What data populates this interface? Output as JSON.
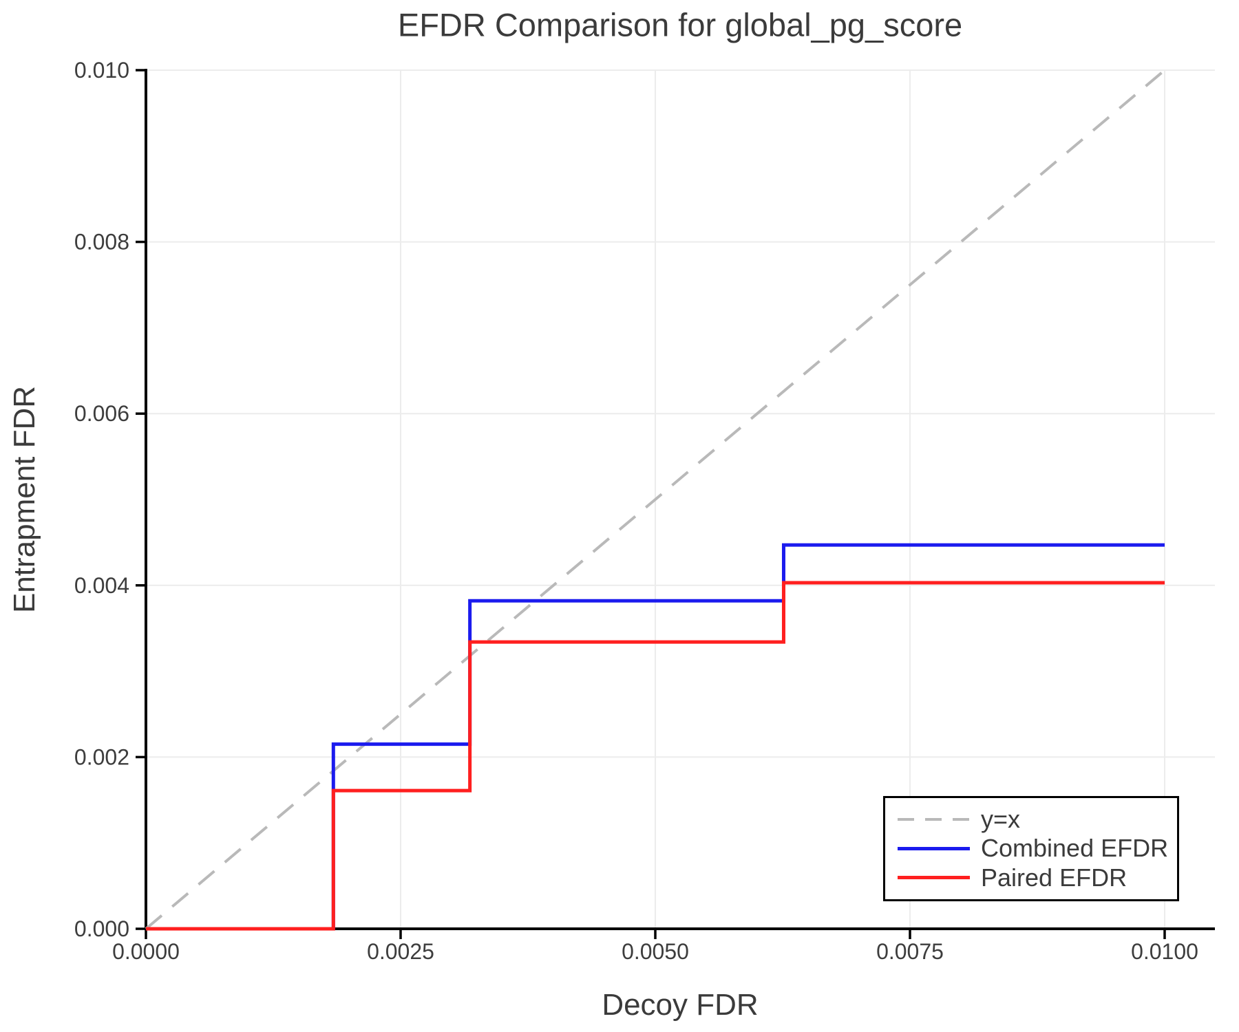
{
  "page": {
    "background": "#ffffff"
  },
  "chart_data": {
    "type": "line",
    "subtype": "step-post",
    "title": "EFDR Comparison for global_pg_score",
    "xlabel": "Decoy FDR",
    "ylabel": "Entrapment FDR",
    "xlim": [
      0.0,
      0.0105
    ],
    "ylim": [
      0.0,
      0.01
    ],
    "grid": true,
    "legend_position": "lower right",
    "x_ticks": {
      "values": [
        0.0,
        0.0025,
        0.005,
        0.0075,
        0.01
      ],
      "labels": [
        "0.0000",
        "0.0025",
        "0.0050",
        "0.0075",
        "0.0100"
      ]
    },
    "y_ticks": {
      "values": [
        0.0,
        0.002,
        0.004,
        0.006,
        0.008,
        0.01
      ],
      "labels": [
        "0.000",
        "0.002",
        "0.004",
        "0.006",
        "0.008",
        "0.010"
      ]
    },
    "series": [
      {
        "name": "y=x",
        "role": "reference-line",
        "style": "dashed",
        "color": "#b9b9b9",
        "width": 4,
        "points": [
          [
            0.0,
            0.0
          ],
          [
            0.01,
            0.01
          ]
        ]
      },
      {
        "name": "Combined EFDR",
        "role": "data-series",
        "style": "solid",
        "color": "#1b1bee",
        "width": 5,
        "points": [
          [
            0.0,
            0.0
          ],
          [
            0.00184,
            0.0
          ],
          [
            0.00184,
            0.00215
          ],
          [
            0.00318,
            0.00215
          ],
          [
            0.00318,
            0.00382
          ],
          [
            0.00626,
            0.00382
          ],
          [
            0.00626,
            0.00447
          ],
          [
            0.01,
            0.00447
          ]
        ]
      },
      {
        "name": "Paired EFDR",
        "role": "data-series",
        "style": "solid",
        "color": "#ff1f1f",
        "width": 5,
        "points": [
          [
            0.0,
            0.0
          ],
          [
            0.00184,
            0.0
          ],
          [
            0.00184,
            0.00161
          ],
          [
            0.00318,
            0.00161
          ],
          [
            0.00318,
            0.00334
          ],
          [
            0.00626,
            0.00334
          ],
          [
            0.00626,
            0.00403
          ],
          [
            0.01,
            0.00403
          ]
        ]
      }
    ],
    "colors": {
      "grid": "#ececec",
      "axis": "#000000",
      "text": "#3b3b3b",
      "tick_text": "#3d3d3d"
    }
  }
}
